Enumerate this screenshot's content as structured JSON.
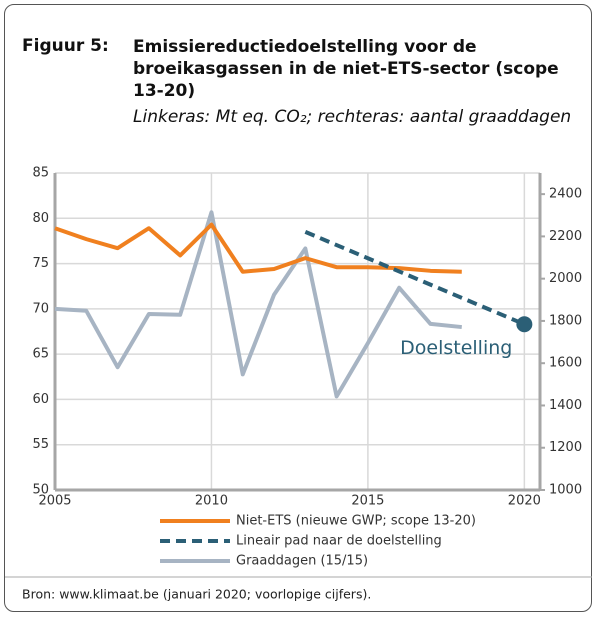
{
  "chart_data": {
    "type": "line",
    "figure_label": "Figuur 5:",
    "title": "Emissiereductiedoelstelling voor de broeikasgassen in de niet-ETS-sector (scope 13-20)",
    "subtitle": "Linkeras: Mt eq. CO₂; rechteras: aantal graaddagen",
    "xlim": [
      2005,
      2020.5
    ],
    "xticks": [
      2005,
      2010,
      2015,
      2020
    ],
    "ylim": [
      50,
      85
    ],
    "yticks": [
      50,
      55,
      60,
      65,
      70,
      75,
      80,
      85
    ],
    "y2lim": [
      1000,
      2500
    ],
    "y2ticks": [
      1000,
      1200,
      1400,
      1600,
      1800,
      2000,
      2200,
      2400
    ],
    "grid": true,
    "series": [
      {
        "name": "Niet-ETS (nieuwe GWP; scope 13-20)",
        "color": "#f0801f",
        "dash": false,
        "x": [
          2005,
          2006,
          2007,
          2008,
          2009,
          2010,
          2011,
          2012,
          2013,
          2014,
          2015,
          2016,
          2017,
          2018
        ],
        "values": [
          78.9,
          77.7,
          76.7,
          78.9,
          75.9,
          79.3,
          74.1,
          74.4,
          75.6,
          74.6,
          74.6,
          74.5,
          74.2,
          74.1
        ]
      },
      {
        "name": "Lineair pad naar de doelstelling",
        "color": "#2b5f76",
        "dash": true,
        "end_marker": true,
        "x": [
          2013,
          2020
        ],
        "values": [
          78.5,
          68.3
        ]
      },
      {
        "name": "Graaddagen (15/15)",
        "color": "#a7b4c3",
        "dash": false,
        "axis": "y2",
        "x": [
          2005,
          2006,
          2007,
          2008,
          2009,
          2010,
          2011,
          2012,
          2013,
          2014,
          2015,
          2016,
          2017,
          2018
        ],
        "values": [
          1857,
          1848,
          1581,
          1833,
          1829,
          2314,
          1547,
          1924,
          2143,
          1443,
          1695,
          1957,
          1786,
          1771
        ]
      }
    ],
    "annotation": "Doelstelling",
    "source": "Bron: www.klimaat.be (januari 2020; voorlopige cijfers)."
  }
}
